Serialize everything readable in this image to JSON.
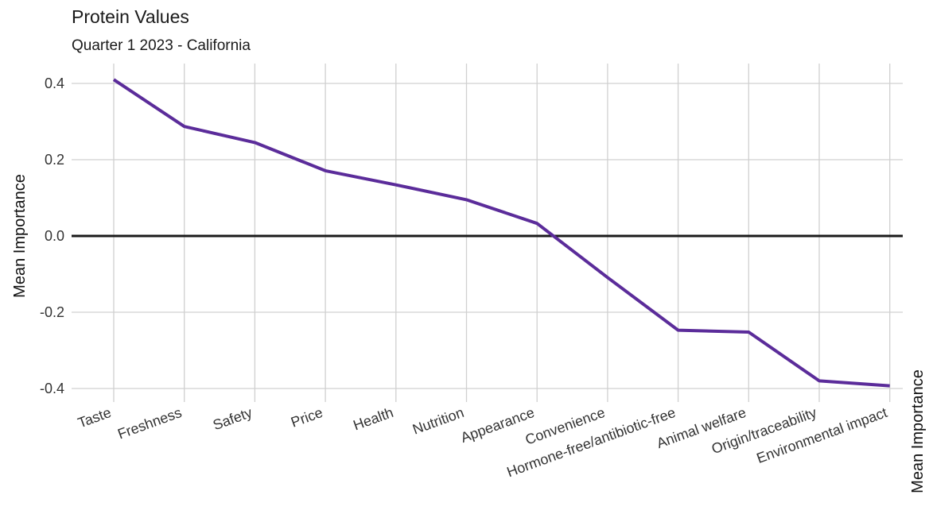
{
  "title": "Protein Values",
  "subtitle": "Quarter 1 2023 - California",
  "colors": {
    "line": "#5b2c9a",
    "zero_line": "#1a1a1a",
    "grid": "#d0d0d0"
  },
  "chart_data": {
    "type": "line",
    "title": "Protein Values",
    "subtitle": "Quarter 1 2023 - California",
    "xlabel": "",
    "ylabel": "Mean Importance",
    "secondary_axis_label": "Mean Importance",
    "ylim": [
      -0.43,
      0.45
    ],
    "yticks": [
      0.4,
      0.2,
      0.0,
      -0.2,
      -0.4
    ],
    "ytick_labels": [
      "0.4",
      "0.2",
      "0.0",
      "-0.2",
      "-0.4"
    ],
    "grid": true,
    "reference_line": 0,
    "categories": [
      "Taste",
      "Freshness",
      "Safety",
      "Price",
      "Health",
      "Nutrition",
      "Appearance",
      "Convenience",
      "Hormone-free/antibiotic-free",
      "Animal welfare",
      "Origin/traceability",
      "Environmental impact"
    ],
    "values": [
      0.41,
      0.287,
      0.245,
      0.171,
      0.134,
      0.095,
      0.033,
      -0.109,
      -0.247,
      -0.252,
      -0.38,
      -0.393
    ]
  }
}
